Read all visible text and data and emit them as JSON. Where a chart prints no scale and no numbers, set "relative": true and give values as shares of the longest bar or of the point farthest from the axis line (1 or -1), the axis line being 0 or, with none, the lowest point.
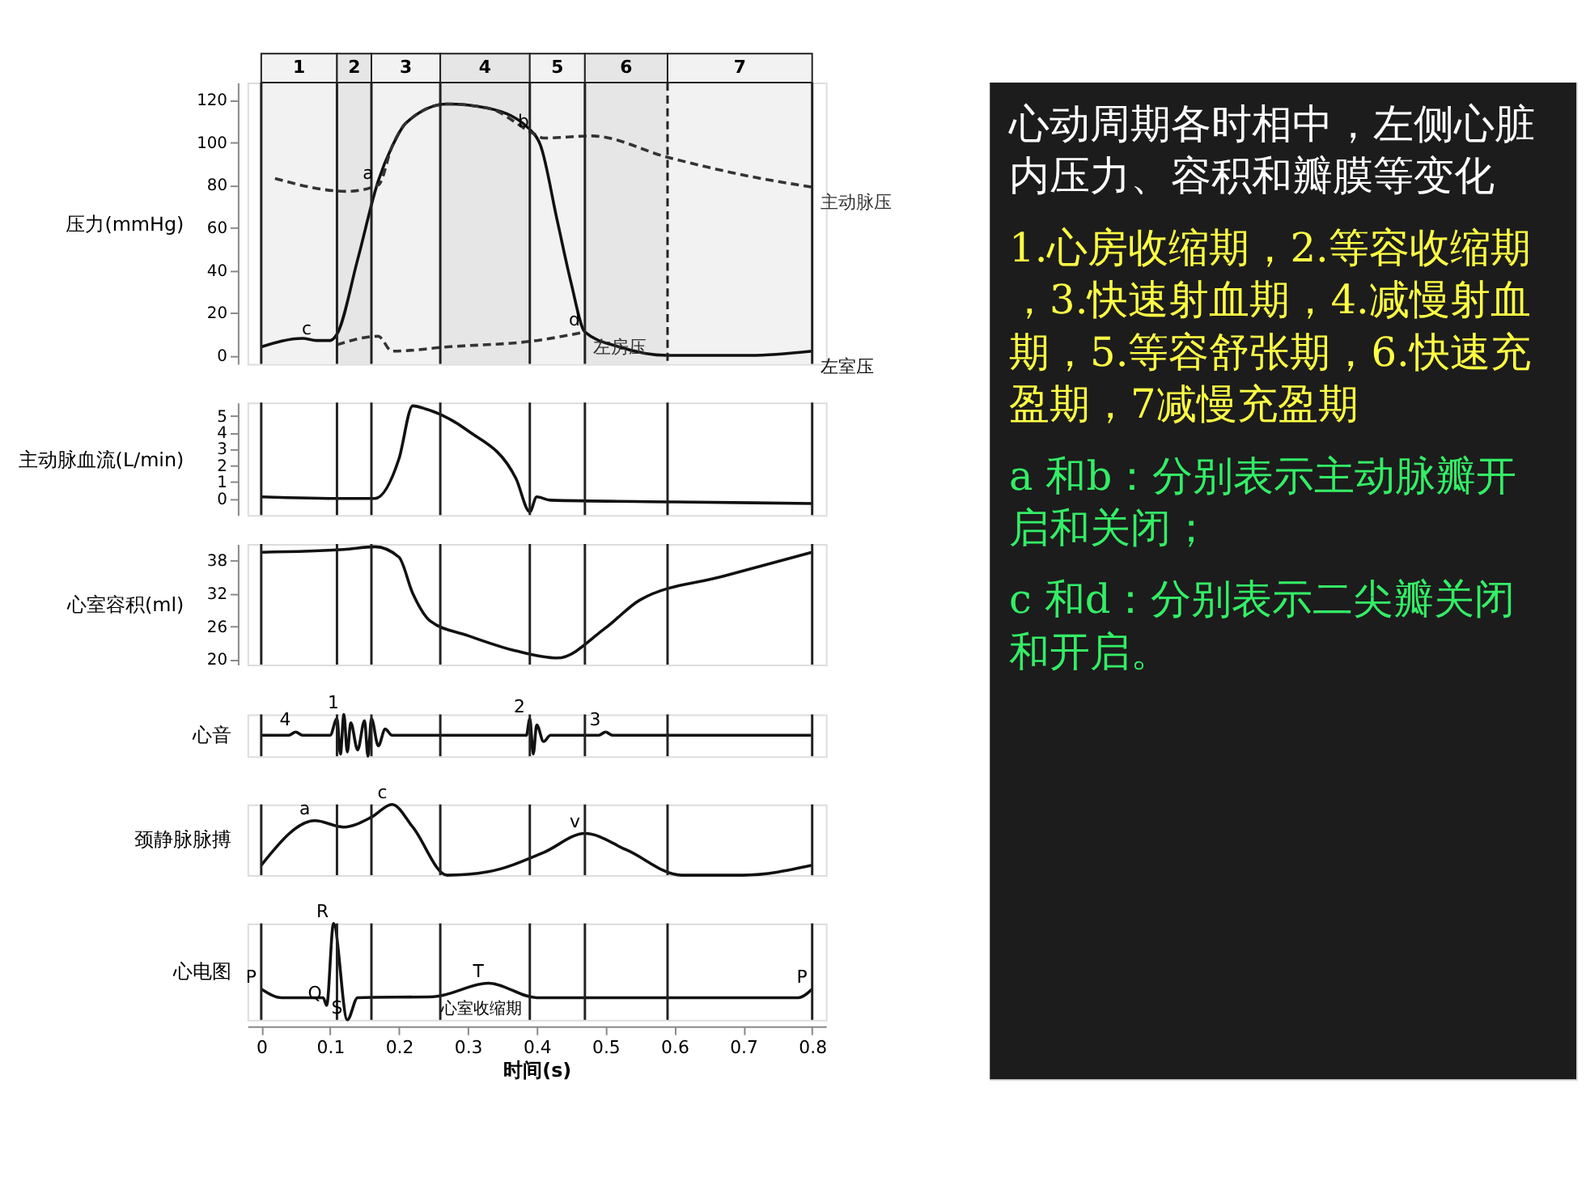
{
  "chart_data": [
    {
      "type": "line",
      "ylabel": "压力(mmHg)",
      "xlim": [
        -0.02,
        0.82
      ],
      "ylim": [
        -4,
        128
      ],
      "yticks": [
        0,
        20,
        40,
        60,
        80,
        100,
        120
      ],
      "tick_labels": "y",
      "grid": false,
      "line_style": "solid",
      "series": [
        {
          "name": "左室压",
          "color": "#111111",
          "x": [
            0,
            0.06,
            0.08,
            0.1,
            0.11,
            0.14,
            0.17,
            0.19,
            0.21,
            0.27,
            0.33,
            0.396,
            0.405,
            0.43,
            0.45,
            0.47,
            0.52,
            0.59,
            0.71,
            0.8
          ],
          "values": [
            4,
            8,
            7,
            7,
            10,
            45,
            82,
            98,
            109,
            118,
            116,
            104,
            99,
            63,
            34,
            11,
            4,
            0,
            0,
            2
          ]
        },
        {
          "name": "主动脉压",
          "color": "#333333",
          "line_style": "dashed",
          "x": [
            0.02,
            0.125,
            0.17,
            0.19,
            0.21,
            0.27,
            0.33,
            0.396,
            0.41,
            0.48,
            0.59,
            0.71,
            0.8
          ],
          "values": [
            83,
            77,
            80,
            98,
            109,
            118,
            116,
            104,
            102,
            103,
            93,
            84,
            79
          ]
        },
        {
          "name": "左房压",
          "color": "#333333",
          "line_style": "dashed",
          "x": [
            0.11,
            0.17,
            0.19,
            0.27,
            0.4,
            0.47
          ],
          "values": [
            5,
            9,
            2,
            4,
            7,
            11
          ]
        }
      ],
      "ref_lines": [
        {
          "axis": "x",
          "value": 0,
          "label": null
        },
        {
          "axis": "x",
          "value": 0.11,
          "label": null
        },
        {
          "axis": "x",
          "value": 0.16,
          "label": null
        },
        {
          "axis": "x",
          "value": 0.26,
          "label": null
        },
        {
          "axis": "x",
          "value": 0.39,
          "label": null
        },
        {
          "axis": "x",
          "value": 0.47,
          "label": null
        },
        {
          "axis": "x",
          "value": 0.59,
          "label": null,
          "line_style": "dashed"
        },
        {
          "axis": "x",
          "value": 0.8,
          "label": null
        }
      ],
      "bands": [
        {
          "axis": "x",
          "from": 0,
          "to": 0.11,
          "label": "1",
          "color": "#f2f2f2"
        },
        {
          "axis": "x",
          "from": 0.11,
          "to": 0.16,
          "label": "2",
          "color": "#e6e6e6"
        },
        {
          "axis": "x",
          "from": 0.16,
          "to": 0.26,
          "label": "3",
          "color": "#f2f2f2"
        },
        {
          "axis": "x",
          "from": 0.26,
          "to": 0.39,
          "label": "4",
          "color": "#e6e6e6"
        },
        {
          "axis": "x",
          "from": 0.39,
          "to": 0.47,
          "label": "5",
          "color": "#f2f2f2"
        },
        {
          "axis": "x",
          "from": 0.47,
          "to": 0.59,
          "label": "6",
          "color": "#e6e6e6"
        },
        {
          "axis": "x",
          "from": 0.59,
          "to": 0.8,
          "label": "7",
          "color": "#f2f2f2"
        }
      ],
      "annotations": [
        {
          "text": "a",
          "x": 0.17,
          "y": 80
        },
        {
          "text": "b",
          "x": 0.396,
          "y": 104
        },
        {
          "text": "c",
          "x": 0.08,
          "y": 7
        },
        {
          "text": "d",
          "x": 0.47,
          "y": 11
        }
      ]
    },
    {
      "type": "line",
      "ylabel": "主动脉血流(L/min)",
      "xlim": [
        -0.02,
        0.82
      ],
      "ylim": [
        -1,
        5.8
      ],
      "yticks": [
        0,
        1,
        2,
        3,
        4,
        5
      ],
      "tick_labels": "y",
      "grid": false,
      "series": [
        {
          "color": "#111111",
          "x": [
            0,
            0.12,
            0.165,
            0.2,
            0.22,
            0.24,
            0.3,
            0.37,
            0.39,
            0.4,
            0.42,
            0.6,
            0.8
          ],
          "values": [
            0.1,
            0,
            0,
            2.4,
            5.6,
            5.4,
            4.1,
            1.2,
            -0.8,
            0.1,
            -0.1,
            -0.2,
            -0.3
          ]
        }
      ],
      "ref_lines": [
        {
          "axis": "x",
          "value": 0,
          "label": null
        },
        {
          "axis": "x",
          "value": 0.11,
          "label": null
        },
        {
          "axis": "x",
          "value": 0.16,
          "label": null
        },
        {
          "axis": "x",
          "value": 0.26,
          "label": null
        },
        {
          "axis": "x",
          "value": 0.39,
          "label": null
        },
        {
          "axis": "x",
          "value": 0.47,
          "label": null
        },
        {
          "axis": "x",
          "value": 0.59,
          "label": null
        },
        {
          "axis": "x",
          "value": 0.8,
          "label": null
        }
      ]
    },
    {
      "type": "line",
      "ylabel": "心室容积(ml)",
      "xlim": [
        -0.02,
        0.82
      ],
      "ylim": [
        19,
        41
      ],
      "yticks": [
        20,
        26,
        32,
        38
      ],
      "tick_labels": "y",
      "grid": false,
      "series": [
        {
          "color": "#111111",
          "x": [
            0,
            0.12,
            0.165,
            0.2,
            0.22,
            0.245,
            0.3,
            0.37,
            0.43,
            0.5,
            0.55,
            0.67,
            0.8
          ],
          "values": [
            39.5,
            40,
            40.5,
            38.6,
            32,
            27,
            24.3,
            21.5,
            20.2,
            25.7,
            30.8,
            35.1,
            39.5
          ]
        }
      ],
      "ref_lines": [
        {
          "axis": "x",
          "value": 0,
          "label": null
        },
        {
          "axis": "x",
          "value": 0.11,
          "label": null
        },
        {
          "axis": "x",
          "value": 0.16,
          "label": null
        },
        {
          "axis": "x",
          "value": 0.26,
          "label": null
        },
        {
          "axis": "x",
          "value": 0.39,
          "label": null
        },
        {
          "axis": "x",
          "value": 0.47,
          "label": null
        },
        {
          "axis": "x",
          "value": 0.59,
          "label": null
        },
        {
          "axis": "x",
          "value": 0.8,
          "label": null
        }
      ]
    },
    {
      "type": "line",
      "relative": true,
      "ylabel": "心音",
      "xlim": [
        -0.02,
        0.82
      ],
      "tick_labels": false,
      "grid": false,
      "series": [
        {
          "color": "#111111",
          "x": [
            0,
            0.04,
            0.05,
            0.06,
            0.1,
            0.11,
            0.115,
            0.12,
            0.125,
            0.13,
            0.14,
            0.15,
            0.155,
            0.16,
            0.17,
            0.18,
            0.19,
            0.385,
            0.39,
            0.395,
            0.4,
            0.41,
            0.42,
            0.49,
            0.5,
            0.51,
            0.8
          ],
          "values": [
            0.5,
            0.5,
            0.58,
            0.5,
            0.5,
            0.9,
            0.05,
            1,
            0.1,
            0.8,
            0.15,
            0.85,
            0,
            0.9,
            0.25,
            0.65,
            0.5,
            0.5,
            0.9,
            0.05,
            0.75,
            0.35,
            0.5,
            0.5,
            0.58,
            0.5,
            0.5
          ]
        }
      ],
      "ref_lines": [
        {
          "axis": "x",
          "value": 0,
          "label": null
        },
        {
          "axis": "x",
          "value": 0.11,
          "label": null
        },
        {
          "axis": "x",
          "value": 0.16,
          "label": null
        },
        {
          "axis": "x",
          "value": 0.26,
          "label": null
        },
        {
          "axis": "x",
          "value": 0.39,
          "label": null
        },
        {
          "axis": "x",
          "value": 0.47,
          "label": null
        },
        {
          "axis": "x",
          "value": 0.59,
          "label": null
        },
        {
          "axis": "x",
          "value": 0.8,
          "label": null
        }
      ],
      "annotations": [
        {
          "text": "4",
          "x": 0.05,
          "y": 0.58
        },
        {
          "text": "1",
          "x": 0.12,
          "y": 1
        },
        {
          "text": "2",
          "x": 0.39,
          "y": 0.9
        },
        {
          "text": "3",
          "x": 0.5,
          "y": 0.58
        }
      ]
    },
    {
      "type": "line",
      "relative": true,
      "ylabel": "颈静脉脉搏",
      "xlim": [
        -0.02,
        0.82
      ],
      "tick_labels": false,
      "grid": false,
      "series": [
        {
          "color": "#111111",
          "x": [
            0,
            0.078,
            0.12,
            0.16,
            0.19,
            0.22,
            0.27,
            0.33,
            0.41,
            0.47,
            0.53,
            0.61,
            0.7,
            0.8
          ],
          "values": [
            0.14,
            0.77,
            0.68,
            0.82,
            1,
            0.68,
            0,
            0.05,
            0.32,
            0.59,
            0.36,
            0,
            0,
            0.14
          ]
        }
      ],
      "ref_lines": [
        {
          "axis": "x",
          "value": 0,
          "label": null
        },
        {
          "axis": "x",
          "value": 0.11,
          "label": null
        },
        {
          "axis": "x",
          "value": 0.16,
          "label": null
        },
        {
          "axis": "x",
          "value": 0.26,
          "label": null
        },
        {
          "axis": "x",
          "value": 0.39,
          "label": null
        },
        {
          "axis": "x",
          "value": 0.47,
          "label": null
        },
        {
          "axis": "x",
          "value": 0.59,
          "label": null
        },
        {
          "axis": "x",
          "value": 0.8,
          "label": null
        }
      ],
      "annotations": [
        {
          "text": "a",
          "x": 0.078,
          "y": 0.77
        },
        {
          "text": "c",
          "x": 0.19,
          "y": 1
        },
        {
          "text": "v",
          "x": 0.47,
          "y": 0.59
        }
      ]
    },
    {
      "type": "line",
      "relative": true,
      "ylabel": "心电图",
      "xlabel": "时间(s)",
      "xlim": [
        -0.02,
        0.82
      ],
      "xticks": [
        0,
        0.1,
        0.2,
        0.3,
        0.4,
        0.5,
        0.6,
        0.7,
        0.8
      ],
      "tick_labels": "x",
      "grid": false,
      "series": [
        {
          "color": "#111111",
          "x": [
            0,
            0.03,
            0.09,
            0.095,
            0.105,
            0.125,
            0.14,
            0.25,
            0.33,
            0.4,
            0.78,
            0.8
          ],
          "values": [
            0.32,
            0.23,
            0.23,
            0.15,
            1,
            0,
            0.23,
            0.24,
            0.38,
            0.23,
            0.23,
            0.32
          ]
        }
      ],
      "ref_lines": [
        {
          "axis": "x",
          "value": 0,
          "label": null
        },
        {
          "axis": "x",
          "value": 0.11,
          "label": null
        },
        {
          "axis": "x",
          "value": 0.16,
          "label": null
        },
        {
          "axis": "x",
          "value": 0.26,
          "label": null
        },
        {
          "axis": "x",
          "value": 0.39,
          "label": null
        },
        {
          "axis": "x",
          "value": 0.47,
          "label": null
        },
        {
          "axis": "x",
          "value": 0.59,
          "label": null
        },
        {
          "axis": "x",
          "value": 0.8,
          "label": null
        }
      ],
      "annotations": [
        {
          "text": "P",
          "x": 0,
          "y": 0.32
        },
        {
          "text": "R",
          "x": 0.105,
          "y": 1
        },
        {
          "text": "Q",
          "x": 0.095,
          "y": 0.15
        },
        {
          "text": "S",
          "x": 0.125,
          "y": 0
        },
        {
          "text": "T",
          "x": 0.33,
          "y": 0.38
        },
        {
          "text": "P",
          "x": 0.8,
          "y": 0.32
        },
        "心室收缩期"
      ]
    },
    {
      "type": "other",
      "title": "心动周期各时相中，左侧心脏内压力、容积和瓣膜等变化",
      "annotations": [
        "1.心房收缩期，2.等容收缩期，3.快速射血期，4.减慢射血期，5.等容舒张期，6.快速充盈期，7减慢充盈期",
        "a 和b：分别表示主动脉瓣开启和关闭；",
        "c 和d：分别表示二尖瓣关闭和开启。"
      ]
    }
  ]
}
